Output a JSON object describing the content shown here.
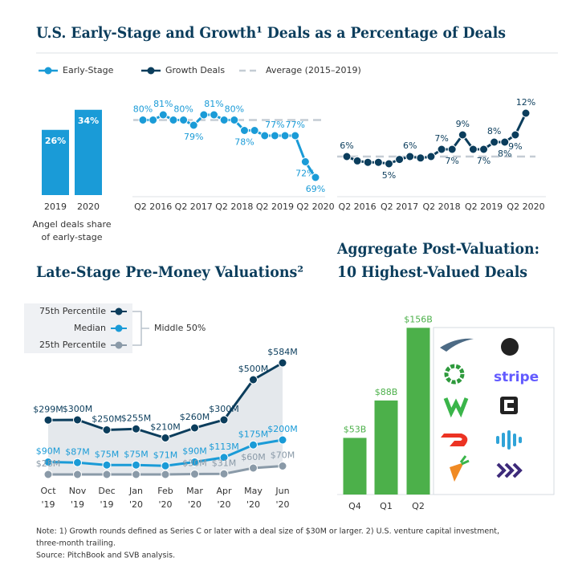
{
  "chart_data": [
    {
      "type": "bar",
      "title": "U.S. Early-Stage and Growth¹ Deals as a Percentage of Deals",
      "categories": [
        "2019",
        "2020"
      ],
      "values": [
        26,
        34
      ],
      "value_labels": [
        "26%",
        "34%"
      ],
      "color": "#1a9bd7",
      "ylim": [
        0,
        40
      ],
      "caption": [
        "Angel deals share",
        "of early-stage"
      ]
    },
    {
      "type": "line",
      "ylim": [
        65,
        85
      ],
      "categories": [
        null,
        "Q2 2016",
        null,
        null,
        null,
        "Q2 2017",
        null,
        null,
        null,
        "Q2 2018",
        null,
        null,
        null,
        "Q2 2019",
        null,
        null,
        null,
        "Q2 2020"
      ],
      "series": [
        {
          "name": "Early-Stage",
          "color": "#1a9bd7",
          "values": [
            80,
            80,
            81,
            80,
            80,
            79,
            81,
            81,
            80,
            80,
            78,
            78,
            77,
            77,
            77,
            77,
            72,
            69
          ],
          "value_labels": [
            "80%",
            null,
            "81%",
            null,
            "80%",
            "79%",
            null,
            "81%",
            null,
            "80%",
            "78%",
            null,
            null,
            "77%",
            null,
            "77%",
            "72%",
            "69%"
          ]
        }
      ],
      "average": {
        "name": "Average (2015–2019)",
        "value": 80,
        "color": "#c4ccd4"
      }
    },
    {
      "type": "line",
      "ylim": [
        2,
        14
      ],
      "categories": [
        null,
        "Q2 2016",
        null,
        null,
        null,
        "Q2 2017",
        null,
        null,
        null,
        "Q2 2018",
        null,
        null,
        null,
        "Q2 2019",
        null,
        null,
        null,
        "Q2 2020"
      ],
      "series": [
        {
          "name": "Growth Deals",
          "color": "#0b3d5c",
          "values": [
            6,
            5.4,
            5.2,
            5.2,
            5,
            5.6,
            6,
            5.8,
            6,
            7,
            7,
            9,
            7,
            7,
            8,
            8,
            9,
            12
          ],
          "value_labels": [
            "6%",
            null,
            null,
            null,
            "5%",
            null,
            "6%",
            null,
            null,
            "7%",
            "7%",
            "9%",
            null,
            "7%",
            "8%",
            "8%",
            "9%",
            "12%"
          ]
        }
      ],
      "average": {
        "value": 6,
        "color": "#c4ccd4"
      }
    },
    {
      "type": "line",
      "title": "Late-Stage Pre-Money Valuations²",
      "ylim": [
        0,
        600
      ],
      "categories": [
        [
          "Oct",
          "'19"
        ],
        [
          "Nov",
          "'19"
        ],
        [
          "Dec",
          "'19"
        ],
        [
          "Jan",
          "'20"
        ],
        [
          "Feb",
          "'20"
        ],
        [
          "Mar",
          "'20"
        ],
        [
          "Apr",
          "'20"
        ],
        [
          "May",
          "'20"
        ],
        [
          "Jun",
          "'20"
        ]
      ],
      "band_label": "Middle 50%",
      "band_color": "#e4e8ec",
      "series": [
        {
          "name": "75th Percentile",
          "color": "#0b3d5c",
          "values": [
            299,
            300,
            250,
            255,
            210,
            260,
            300,
            500,
            584
          ],
          "value_labels": [
            "$299M",
            "$300M",
            "$250M",
            "$255M",
            "$210M",
            "$260M",
            "$300M",
            "$500M",
            "$584M"
          ]
        },
        {
          "name": "Median",
          "color": "#1a9bd7",
          "values": [
            90,
            87,
            75,
            75,
            71,
            90,
            113,
            175,
            200
          ],
          "value_labels": [
            "$90M",
            "$87M",
            "$75M",
            "$75M",
            "$71M",
            "$90M",
            "$113M",
            "$175M",
            "$200M"
          ]
        },
        {
          "name": "25th Percentile",
          "color": "#8a9aa8",
          "values": [
            28,
            28,
            28,
            28,
            28,
            30,
            31,
            60,
            70
          ],
          "value_labels": [
            "$28M",
            null,
            null,
            null,
            null,
            "$30M",
            "$31M",
            "$60M",
            "$70M"
          ]
        }
      ]
    },
    {
      "type": "bar",
      "title": [
        "Aggregate Post-Valuation:",
        "10 Highest-Valued Deals"
      ],
      "categories": [
        "Q4",
        "Q1",
        "Q2"
      ],
      "values": [
        53,
        88,
        156
      ],
      "value_labels": [
        "$53B",
        "$88B",
        "$156B"
      ],
      "color": "#4cb04a",
      "ylim": [
        0,
        160
      ],
      "logo_labels": [
        "stripe"
      ]
    }
  ],
  "notes": [
    "Note: 1) Growth rounds defined as Series C or later with a deal size of $30M or larger. 2) U.S. venture capital investment,",
    "three-month trailing.",
    "Source: PitchBook and SVB analysis."
  ]
}
